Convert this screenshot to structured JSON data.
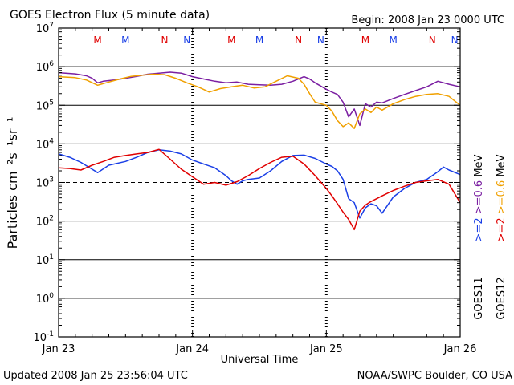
{
  "chart_data": {
    "type": "line",
    "title": "GOES Electron Flux (5 minute data)",
    "begin": "Begin: 2008 Jan 23 0000 UTC",
    "ylabel": "Particles cm⁻²s⁻¹sr⁻¹",
    "xlabel": "Universal Time",
    "updated": "Updated 2008 Jan 25 23:56:04 UTC",
    "credit": "NOAA/SWPC Boulder, CO USA",
    "yscale": "log",
    "ylim": [
      0.1,
      10000000
    ],
    "y_ticks": [
      {
        "base": "10",
        "exp": "-1",
        "v": 0.1
      },
      {
        "base": "10",
        "exp": "0",
        "v": 1
      },
      {
        "base": "10",
        "exp": "1",
        "v": 10
      },
      {
        "base": "10",
        "exp": "2",
        "v": 100
      },
      {
        "base": "10",
        "exp": "3",
        "v": 1000
      },
      {
        "base": "10",
        "exp": "4",
        "v": 10000
      },
      {
        "base": "10",
        "exp": "5",
        "v": 100000
      },
      {
        "base": "10",
        "exp": "6",
        "v": 1000000
      },
      {
        "base": "10",
        "exp": "7",
        "v": 10000000
      }
    ],
    "xlim": [
      "2008-01-23",
      "2008-01-26"
    ],
    "x_ticks": [
      {
        "label": "Jan 23",
        "d": "2008-01-23"
      },
      {
        "label": "Jan 24",
        "d": "2008-01-24"
      },
      {
        "label": "Jan 25",
        "d": "2008-01-25"
      },
      {
        "label": "Jan 26",
        "d": "2008-01-26"
      }
    ],
    "threshold_line": 1000,
    "grid": "horizontal at each decade",
    "noon_markers": [
      {
        "label": "M",
        "color": "#e00000",
        "d": "2008-01-23 07:00"
      },
      {
        "label": "M",
        "color": "#1a3fe6",
        "d": "2008-01-23 12:00"
      },
      {
        "label": "N",
        "color": "#e00000",
        "d": "2008-01-23 19:00"
      },
      {
        "label": "N",
        "color": "#1a3fe6",
        "d": "2008-01-23 23:00"
      },
      {
        "label": "M",
        "color": "#e00000",
        "d": "2008-01-24 07:00"
      },
      {
        "label": "M",
        "color": "#1a3fe6",
        "d": "2008-01-24 12:00"
      },
      {
        "label": "N",
        "color": "#e00000",
        "d": "2008-01-24 19:00"
      },
      {
        "label": "N",
        "color": "#1a3fe6",
        "d": "2008-01-24 23:00"
      },
      {
        "label": "M",
        "color": "#e00000",
        "d": "2008-01-25 07:00"
      },
      {
        "label": "M",
        "color": "#1a3fe6",
        "d": "2008-01-25 12:00"
      },
      {
        "label": "N",
        "color": "#e00000",
        "d": "2008-01-25 19:00"
      },
      {
        "label": "N",
        "color": "#1a3fe6",
        "d": "2008-01-25 23:00"
      }
    ],
    "legend_right": [
      {
        "text": ">=2  >=0.6 MeV",
        "parts": [
          {
            "t": ">=2",
            "color": "#1a3fe6"
          },
          {
            "t": " >=0.6",
            "color": "#7b1fa2"
          },
          {
            "t": " MeV",
            "color": "#000000"
          }
        ]
      },
      {
        "text": ">=2  >=0.6 MeV",
        "parts": [
          {
            "t": ">=2",
            "color": "#e00000"
          },
          {
            "t": " >=0.6",
            "color": "#f0a000"
          },
          {
            "t": " MeV",
            "color": "#000000"
          }
        ]
      },
      {
        "text": "GOES11",
        "parts": [
          {
            "t": "GOES11",
            "color": "#000000"
          }
        ]
      },
      {
        "text": "GOES12",
        "parts": [
          {
            "t": "GOES12",
            "color": "#000000"
          }
        ]
      }
    ],
    "series": [
      {
        "name": "GOES11 >=0.6 MeV",
        "color": "#7b1fa2",
        "points": [
          [
            "2008-01-23 00:00",
            700000
          ],
          [
            "2008-01-23 03:00",
            650000
          ],
          [
            "2008-01-23 05:00",
            580000
          ],
          [
            "2008-01-23 06:00",
            500000
          ],
          [
            "2008-01-23 07:00",
            380000
          ],
          [
            "2008-01-23 08:00",
            420000
          ],
          [
            "2008-01-23 10:00",
            450000
          ],
          [
            "2008-01-23 12:00",
            500000
          ],
          [
            "2008-01-23 14:00",
            560000
          ],
          [
            "2008-01-23 16:00",
            640000
          ],
          [
            "2008-01-23 18:00",
            680000
          ],
          [
            "2008-01-23 20:00",
            720000
          ],
          [
            "2008-01-23 22:00",
            680000
          ],
          [
            "2008-01-24 00:00",
            550000
          ],
          [
            "2008-01-24 02:00",
            480000
          ],
          [
            "2008-01-24 04:00",
            420000
          ],
          [
            "2008-01-24 06:00",
            380000
          ],
          [
            "2008-01-24 08:00",
            400000
          ],
          [
            "2008-01-24 10:00",
            350000
          ],
          [
            "2008-01-24 12:00",
            340000
          ],
          [
            "2008-01-24 14:00",
            330000
          ],
          [
            "2008-01-24 16:00",
            350000
          ],
          [
            "2008-01-24 18:00",
            420000
          ],
          [
            "2008-01-24 20:00",
            550000
          ],
          [
            "2008-01-24 21:00",
            480000
          ],
          [
            "2008-01-24 22:00",
            380000
          ],
          [
            "2008-01-25 00:00",
            260000
          ],
          [
            "2008-01-25 01:00",
            220000
          ],
          [
            "2008-01-25 02:00",
            190000
          ],
          [
            "2008-01-25 03:00",
            120000
          ],
          [
            "2008-01-25 04:00",
            50000
          ],
          [
            "2008-01-25 05:00",
            80000
          ],
          [
            "2008-01-25 06:00",
            30000
          ],
          [
            "2008-01-25 07:00",
            110000
          ],
          [
            "2008-01-25 08:00",
            90000
          ],
          [
            "2008-01-25 09:00",
            120000
          ],
          [
            "2008-01-25 10:00",
            115000
          ],
          [
            "2008-01-25 12:00",
            150000
          ],
          [
            "2008-01-25 14:00",
            190000
          ],
          [
            "2008-01-25 16:00",
            240000
          ],
          [
            "2008-01-25 18:00",
            300000
          ],
          [
            "2008-01-25 20:00",
            420000
          ],
          [
            "2008-01-25 22:00",
            350000
          ],
          [
            "2008-01-26 00:00",
            300000
          ]
        ]
      },
      {
        "name": "GOES12 >=0.6 MeV",
        "color": "#f0a000",
        "points": [
          [
            "2008-01-23 00:00",
            550000
          ],
          [
            "2008-01-23 03:00",
            520000
          ],
          [
            "2008-01-23 05:00",
            450000
          ],
          [
            "2008-01-23 07:00",
            330000
          ],
          [
            "2008-01-23 09:00",
            400000
          ],
          [
            "2008-01-23 11:00",
            480000
          ],
          [
            "2008-01-23 13:00",
            560000
          ],
          [
            "2008-01-23 15:00",
            600000
          ],
          [
            "2008-01-23 17:00",
            640000
          ],
          [
            "2008-01-23 19:00",
            620000
          ],
          [
            "2008-01-23 21:00",
            500000
          ],
          [
            "2008-01-23 23:00",
            380000
          ],
          [
            "2008-01-24 01:00",
            300000
          ],
          [
            "2008-01-24 03:00",
            220000
          ],
          [
            "2008-01-24 05:00",
            270000
          ],
          [
            "2008-01-24 07:00",
            300000
          ],
          [
            "2008-01-24 09:00",
            330000
          ],
          [
            "2008-01-24 11:00",
            280000
          ],
          [
            "2008-01-24 13:00",
            300000
          ],
          [
            "2008-01-24 15:00",
            420000
          ],
          [
            "2008-01-24 17:00",
            580000
          ],
          [
            "2008-01-24 19:00",
            500000
          ],
          [
            "2008-01-24 20:00",
            350000
          ],
          [
            "2008-01-24 21:00",
            200000
          ],
          [
            "2008-01-24 22:00",
            120000
          ],
          [
            "2008-01-25 00:00",
            100000
          ],
          [
            "2008-01-25 01:00",
            70000
          ],
          [
            "2008-01-25 02:00",
            40000
          ],
          [
            "2008-01-25 03:00",
            28000
          ],
          [
            "2008-01-25 04:00",
            35000
          ],
          [
            "2008-01-25 05:00",
            25000
          ],
          [
            "2008-01-25 06:00",
            60000
          ],
          [
            "2008-01-25 07:00",
            80000
          ],
          [
            "2008-01-25 08:00",
            65000
          ],
          [
            "2008-01-25 09:00",
            90000
          ],
          [
            "2008-01-25 10:00",
            75000
          ],
          [
            "2008-01-25 12:00",
            110000
          ],
          [
            "2008-01-25 14:00",
            140000
          ],
          [
            "2008-01-25 16:00",
            170000
          ],
          [
            "2008-01-25 18:00",
            190000
          ],
          [
            "2008-01-25 20:00",
            200000
          ],
          [
            "2008-01-25 22:00",
            170000
          ],
          [
            "2008-01-26 00:00",
            100000
          ]
        ]
      },
      {
        "name": "GOES11 >=2 MeV",
        "color": "#1a3fe6",
        "points": [
          [
            "2008-01-23 00:00",
            5500
          ],
          [
            "2008-01-23 02:00",
            4500
          ],
          [
            "2008-01-23 04:00",
            3300
          ],
          [
            "2008-01-23 06:00",
            2200
          ],
          [
            "2008-01-23 07:00",
            1800
          ],
          [
            "2008-01-23 09:00",
            2800
          ],
          [
            "2008-01-23 12:00",
            3500
          ],
          [
            "2008-01-23 14:00",
            4500
          ],
          [
            "2008-01-23 16:00",
            6000
          ],
          [
            "2008-01-23 18:00",
            7000
          ],
          [
            "2008-01-23 20:00",
            6500
          ],
          [
            "2008-01-23 22:00",
            5500
          ],
          [
            "2008-01-24 00:00",
            3800
          ],
          [
            "2008-01-24 02:00",
            3000
          ],
          [
            "2008-01-24 04:00",
            2400
          ],
          [
            "2008-01-24 06:00",
            1500
          ],
          [
            "2008-01-24 07:00",
            1100
          ],
          [
            "2008-01-24 08:00",
            900
          ],
          [
            "2008-01-24 09:00",
            1100
          ],
          [
            "2008-01-24 10:00",
            1200
          ],
          [
            "2008-01-24 12:00",
            1300
          ],
          [
            "2008-01-24 14:00",
            2000
          ],
          [
            "2008-01-24 16:00",
            3500
          ],
          [
            "2008-01-24 18:00",
            5000
          ],
          [
            "2008-01-24 20:00",
            5100
          ],
          [
            "2008-01-24 22:00",
            4200
          ],
          [
            "2008-01-25 00:00",
            3000
          ],
          [
            "2008-01-25 01:00",
            2600
          ],
          [
            "2008-01-25 02:00",
            2000
          ],
          [
            "2008-01-25 03:00",
            1200
          ],
          [
            "2008-01-25 04:00",
            380
          ],
          [
            "2008-01-25 05:00",
            300
          ],
          [
            "2008-01-25 06:00",
            120
          ],
          [
            "2008-01-25 07:00",
            220
          ],
          [
            "2008-01-25 08:00",
            280
          ],
          [
            "2008-01-25 09:00",
            250
          ],
          [
            "2008-01-25 10:00",
            160
          ],
          [
            "2008-01-25 12:00",
            420
          ],
          [
            "2008-01-25 14:00",
            700
          ],
          [
            "2008-01-25 16:00",
            1000
          ],
          [
            "2008-01-25 18:00",
            1200
          ],
          [
            "2008-01-25 20:00",
            1900
          ],
          [
            "2008-01-25 21:00",
            2500
          ],
          [
            "2008-01-25 22:00",
            2100
          ],
          [
            "2008-01-26 00:00",
            1600
          ]
        ]
      },
      {
        "name": "GOES12 >=2 MeV",
        "color": "#e00000",
        "points": [
          [
            "2008-01-23 00:00",
            2400
          ],
          [
            "2008-01-23 02:00",
            2300
          ],
          [
            "2008-01-23 04:00",
            2100
          ],
          [
            "2008-01-23 06:00",
            2800
          ],
          [
            "2008-01-23 08:00",
            3500
          ],
          [
            "2008-01-23 10:00",
            4500
          ],
          [
            "2008-01-23 12:00",
            5000
          ],
          [
            "2008-01-23 14:00",
            5500
          ],
          [
            "2008-01-23 16:00",
            6000
          ],
          [
            "2008-01-23 18:00",
            7200
          ],
          [
            "2008-01-23 20:00",
            4000
          ],
          [
            "2008-01-23 22:00",
            2200
          ],
          [
            "2008-01-24 00:00",
            1400
          ],
          [
            "2008-01-24 02:00",
            900
          ],
          [
            "2008-01-24 04:00",
            1000
          ],
          [
            "2008-01-24 06:00",
            850
          ],
          [
            "2008-01-24 08:00",
            1050
          ],
          [
            "2008-01-24 10:00",
            1500
          ],
          [
            "2008-01-24 12:00",
            2300
          ],
          [
            "2008-01-24 14:00",
            3300
          ],
          [
            "2008-01-24 16:00",
            4500
          ],
          [
            "2008-01-24 18:00",
            4800
          ],
          [
            "2008-01-24 20:00",
            3000
          ],
          [
            "2008-01-24 22:00",
            1500
          ],
          [
            "2008-01-25 00:00",
            700
          ],
          [
            "2008-01-25 01:00",
            450
          ],
          [
            "2008-01-25 02:00",
            280
          ],
          [
            "2008-01-25 03:00",
            170
          ],
          [
            "2008-01-25 04:00",
            110
          ],
          [
            "2008-01-25 05:00",
            60
          ],
          [
            "2008-01-25 06:00",
            180
          ],
          [
            "2008-01-25 07:00",
            260
          ],
          [
            "2008-01-25 08:00",
            320
          ],
          [
            "2008-01-25 10:00",
            450
          ],
          [
            "2008-01-25 12:00",
            620
          ],
          [
            "2008-01-25 14:00",
            800
          ],
          [
            "2008-01-25 16:00",
            1000
          ],
          [
            "2008-01-25 18:00",
            1100
          ],
          [
            "2008-01-25 20:00",
            1200
          ],
          [
            "2008-01-25 22:00",
            900
          ],
          [
            "2008-01-26 00:00",
            300
          ]
        ]
      }
    ]
  }
}
